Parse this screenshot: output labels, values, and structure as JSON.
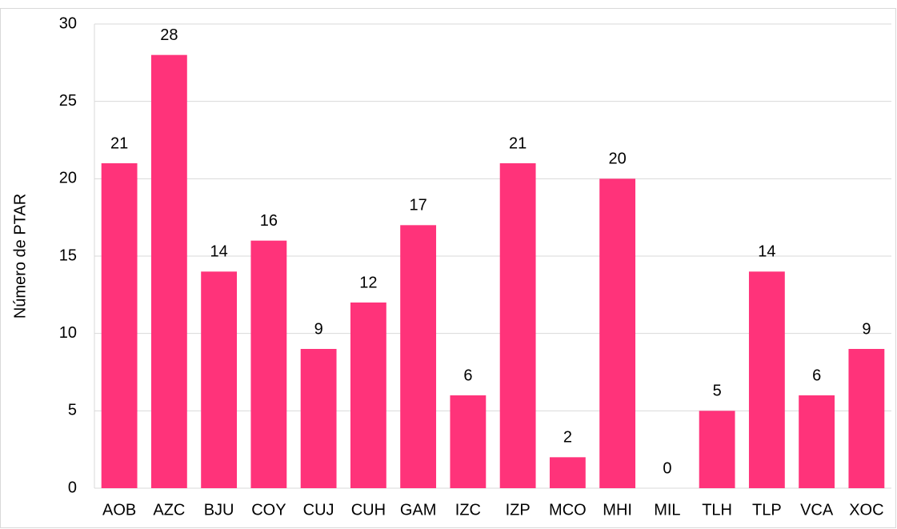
{
  "chart_data": {
    "type": "bar",
    "y_label": "Número de PTAR",
    "categories": [
      "AOB",
      "AZC",
      "BJU",
      "COY",
      "CUJ",
      "CUH",
      "GAM",
      "IZC",
      "IZP",
      "MCO",
      "MHI",
      "MIL",
      "TLH",
      "TLP",
      "VCA",
      "XOC"
    ],
    "values": [
      21,
      28,
      14,
      16,
      9,
      12,
      17,
      6,
      21,
      2,
      20,
      0,
      5,
      14,
      6,
      9
    ],
    "color": "#ff337a",
    "ylim": [
      0,
      30
    ],
    "yticks": [
      0,
      5,
      10,
      15,
      20,
      25,
      30
    ],
    "grid": true
  }
}
